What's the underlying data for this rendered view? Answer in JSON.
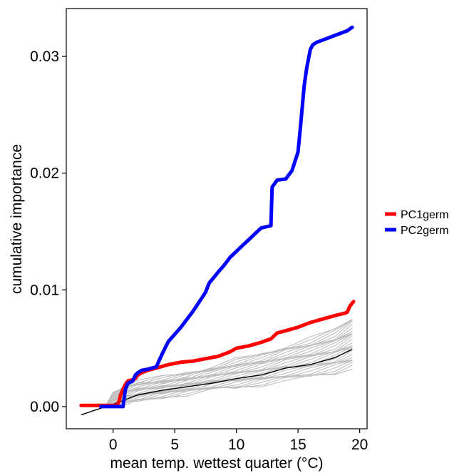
{
  "chart_data": {
    "type": "line",
    "title": "",
    "xlabel": "mean temp. wettest quarter (°C)",
    "ylabel": "cumulative importance",
    "xlim": [
      -3.8,
      20.6
    ],
    "ylim": [
      -0.0019,
      0.0341
    ],
    "x_ticks": [
      0,
      5,
      10,
      15,
      20
    ],
    "y_ticks": [
      0.0,
      0.01,
      0.02,
      0.03
    ],
    "x_tick_labels": [
      "0",
      "5",
      "10",
      "15",
      "20"
    ],
    "y_tick_labels": [
      "0.00",
      "0.01",
      "0.02",
      "0.03"
    ],
    "grid": false,
    "legend_position": "right",
    "series": [
      {
        "name": "PC1germ",
        "color": "#ff0000",
        "x": [
          -2.6,
          -1.0,
          0.3,
          0.5,
          0.6,
          0.8,
          1.0,
          1.2,
          1.6,
          1.8,
          2.0,
          2.3,
          2.8,
          3.5,
          4.5,
          5.5,
          6.5,
          7.5,
          8.0,
          8.5,
          9.0,
          9.5,
          10.0,
          11.0,
          12.0,
          12.8,
          13.3,
          14.0,
          15.0,
          16.0,
          17.0,
          18.0,
          18.8,
          19.0,
          19.2,
          19.5
        ],
        "values": [
          0.0001,
          0.0001,
          0.0001,
          0.0005,
          0.001,
          0.0015,
          0.0019,
          0.0022,
          0.0023,
          0.0024,
          0.0027,
          0.0029,
          0.0031,
          0.0033,
          0.0036,
          0.0038,
          0.0039,
          0.0041,
          0.0042,
          0.0043,
          0.0045,
          0.0047,
          0.005,
          0.0052,
          0.0055,
          0.0058,
          0.0063,
          0.0065,
          0.0068,
          0.0072,
          0.0075,
          0.0078,
          0.008,
          0.0081,
          0.0086,
          0.009
        ]
      },
      {
        "name": "PC2germ",
        "color": "#0000ff",
        "x": [
          -1.0,
          0.5,
          0.8,
          1.0,
          1.2,
          1.6,
          1.8,
          2.0,
          2.3,
          2.8,
          3.5,
          3.8,
          4.2,
          4.5,
          5.0,
          5.5,
          6.0,
          6.5,
          7.0,
          7.5,
          7.8,
          8.2,
          8.5,
          9.0,
          9.5,
          10.0,
          10.5,
          11.0,
          11.5,
          12.0,
          12.4,
          12.8,
          12.9,
          13.3,
          14.0,
          14.5,
          15.0,
          15.2,
          15.5,
          15.7,
          16.0,
          16.2,
          16.5,
          17.0,
          18.0,
          19.0,
          19.4
        ],
        "values": [
          0.0,
          0.0,
          0.0,
          0.0015,
          0.002,
          0.0022,
          0.0027,
          0.0029,
          0.0031,
          0.0032,
          0.0034,
          0.0041,
          0.005,
          0.0056,
          0.0062,
          0.0068,
          0.0075,
          0.0082,
          0.009,
          0.0098,
          0.0106,
          0.0111,
          0.0115,
          0.0121,
          0.0128,
          0.0133,
          0.0138,
          0.0143,
          0.0148,
          0.0153,
          0.0154,
          0.0155,
          0.0188,
          0.0194,
          0.0195,
          0.0202,
          0.0218,
          0.024,
          0.0275,
          0.029,
          0.0306,
          0.031,
          0.0312,
          0.0314,
          0.0318,
          0.0322,
          0.0325
        ]
      }
    ],
    "unlabeled_lines": {
      "black_reference": {
        "color": "#000000",
        "x": [
          -2.6,
          0.0,
          2.0,
          4.0,
          6.0,
          8.0,
          10.0,
          12.0,
          14.0,
          16.0,
          18.0,
          19.4
        ],
        "values": [
          -0.0007,
          0.0002,
          0.001,
          0.0014,
          0.0017,
          0.002,
          0.0024,
          0.0027,
          0.0033,
          0.0036,
          0.0042,
          0.0049
        ]
      },
      "gray_envelope": {
        "color": "#bebebe",
        "x": [
          -0.5,
          0.0,
          1.0,
          2.0,
          4.0,
          6.0,
          8.0,
          10.0,
          12.0,
          14.0,
          16.0,
          18.0,
          19.4
        ],
        "lower": [
          0.0,
          0.0,
          0.0002,
          0.0004,
          0.0008,
          0.0011,
          0.0014,
          0.0016,
          0.0019,
          0.0022,
          0.0025,
          0.0029,
          0.0033
        ],
        "upper": [
          0.0003,
          0.0012,
          0.0018,
          0.0022,
          0.0025,
          0.0029,
          0.0034,
          0.004,
          0.0045,
          0.0052,
          0.0058,
          0.0066,
          0.0077
        ]
      }
    }
  }
}
